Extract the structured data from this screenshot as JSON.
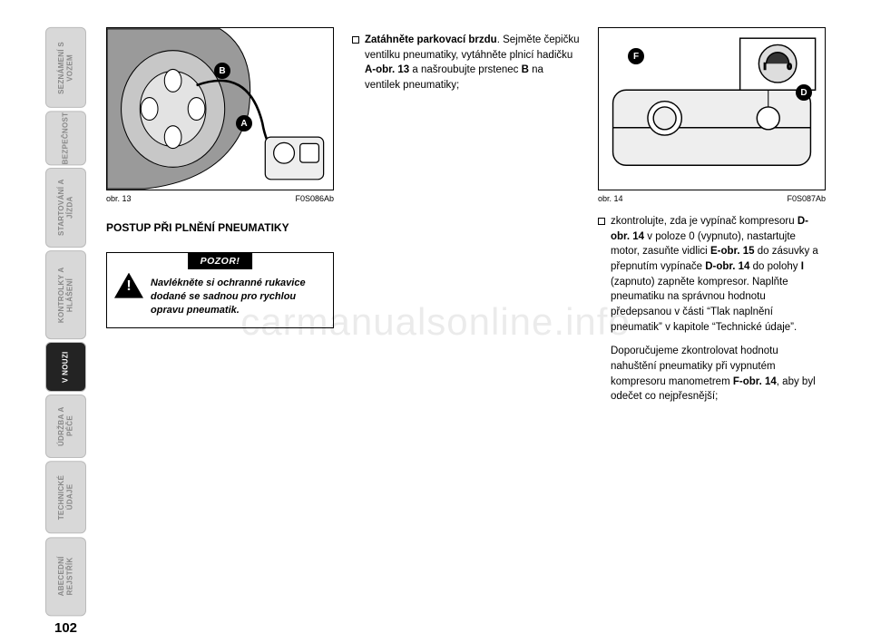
{
  "page_number": "102",
  "watermark": "carmanualsonline.info",
  "sidebar": {
    "tabs": [
      {
        "label": "SEZNÁMENÍ\nS VOZEM",
        "active": false
      },
      {
        "label": "BEZPEČNOST",
        "active": false
      },
      {
        "label": "STARTOVÁNÍ\nA JÍZDA",
        "active": false
      },
      {
        "label": "KONTROLKY\nA HLÁŠENÍ",
        "active": false
      },
      {
        "label": "V NOUZI",
        "active": true
      },
      {
        "label": "ÚDRŽBA\nA PÉČE",
        "active": false
      },
      {
        "label": "TECHNICKÉ\nÚDAJE",
        "active": false
      },
      {
        "label": "ABECEDNÍ\nREJSTŘÍK",
        "active": false
      }
    ]
  },
  "col1": {
    "figure": {
      "caption_left": "obr. 13",
      "caption_right": "F0S086Ab",
      "callouts": {
        "A": "A",
        "B": "B"
      }
    },
    "heading": "POSTUP PŘI PLNĚNÍ PNEUMATIKY",
    "warning": {
      "title": "POZOR!",
      "text": "Navlékněte si ochranné rukavice dodané se sadnou pro rychlou opravu pneumatik."
    }
  },
  "col2": {
    "paragraph_html": "<b>Zatáhněte parkovací brzdu</b>. Sejmě­te čepičku ventilku pneumatiky, vytáhněte plnicí hadičku <b>A-obr. 13</b> a našroubujte prstenec <b>B</b> na ventilek pneumatiky;"
  },
  "col3": {
    "figure": {
      "caption_left": "obr. 14",
      "caption_right": "F0S087Ab",
      "callouts": {
        "F": "F",
        "D": "D"
      }
    },
    "paragraph1_html": "zkontrolujte, zda je vypínač kompreso­ru <b>D-obr. 14</b> v poloze 0 (vypnuto), na­startujte motor, zasuňte vidlici <b>E-obr. 15</b> do zásuvky a přepnutím vypínače <b>D-obr. 14</b> do polohy <b>I</b> (zapnuto) zapně­te kompresor. Naplňte pneumatiku na správnou hodnotu předepsanou v čá­sti “Tlak naplnění pneumatik” v kapi­tole “Technické údaje”.",
    "paragraph2_html": "Doporučujeme zkontrolovat hodnotu nahuštění pneumatiky při vypnutém kompresoru manometrem <b>F-obr. 14</b>, aby byl odečet co nejpřesnější;"
  }
}
